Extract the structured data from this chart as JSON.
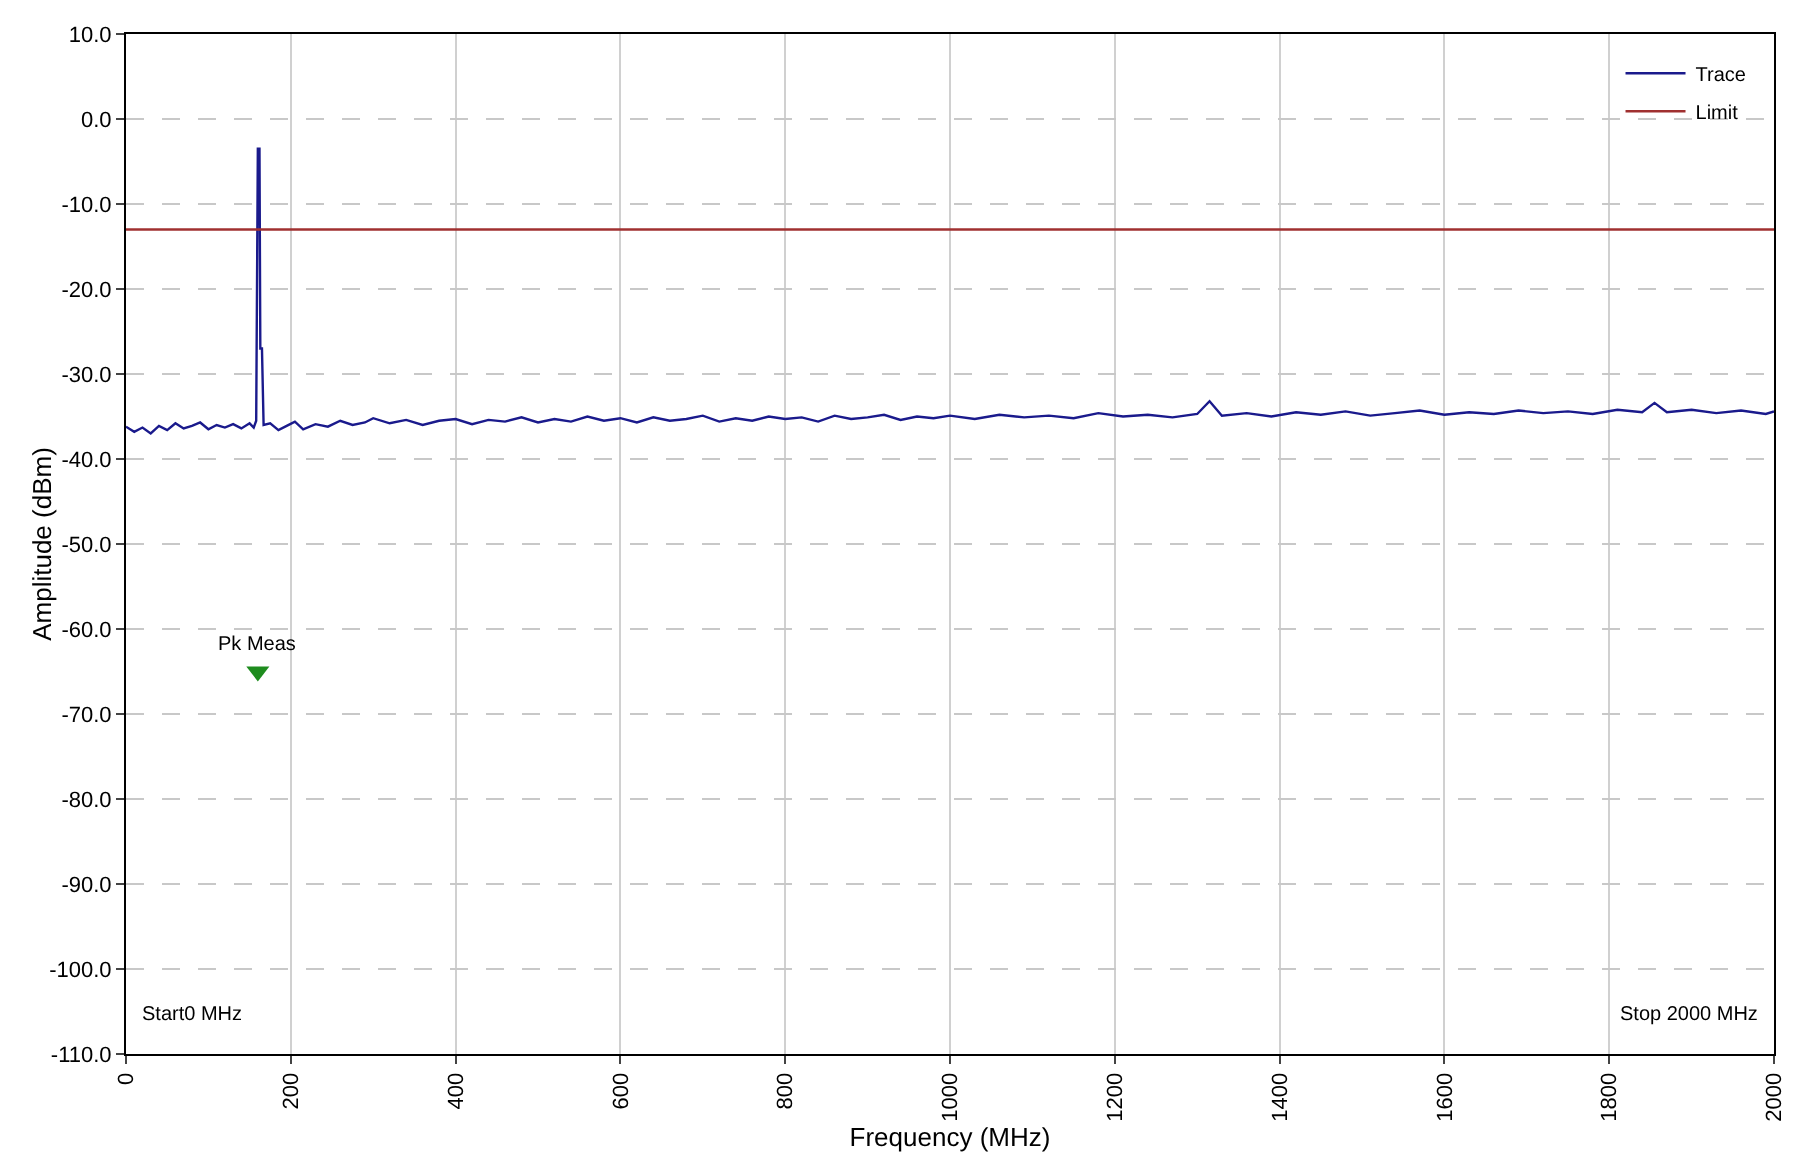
{
  "chart_data": {
    "type": "line",
    "xlabel": "Frequency (MHz)",
    "ylabel": "Amplitude (dBm)",
    "xlim": [
      0,
      2000
    ],
    "xticks": [
      0,
      200,
      400,
      600,
      800,
      1000,
      1200,
      1400,
      1600,
      1800,
      2000
    ],
    "ylim": [
      -110,
      10
    ],
    "yticks": [
      {
        "value": 10,
        "label": "10.0"
      },
      {
        "value": 0,
        "label": "0.0"
      },
      {
        "value": -10,
        "label": "-10.0"
      },
      {
        "value": -20,
        "label": "-20.0"
      },
      {
        "value": -30,
        "label": "-30.0"
      },
      {
        "value": -40,
        "label": "-40.0"
      },
      {
        "value": -50,
        "label": "-50.0"
      },
      {
        "value": -60,
        "label": "-60.0"
      },
      {
        "value": -70,
        "label": "-70.0"
      },
      {
        "value": -80,
        "label": "-80.0"
      },
      {
        "value": -90,
        "label": "-90.0"
      },
      {
        "value": -100,
        "label": "-100.0"
      },
      {
        "value": -110,
        "label": "-110.0"
      }
    ],
    "grid": true,
    "legend": "top right",
    "marker": "none",
    "line_style": "solid",
    "series": [
      {
        "name": "Trace",
        "color": "#1a1a8c",
        "x": [
          0,
          10,
          20,
          30,
          40,
          50,
          60,
          70,
          80,
          90,
          100,
          110,
          120,
          130,
          140,
          150,
          155,
          158,
          160,
          162,
          163,
          165,
          167,
          175,
          185,
          195,
          205,
          215,
          230,
          245,
          260,
          275,
          290,
          300,
          320,
          340,
          360,
          380,
          400,
          420,
          440,
          460,
          480,
          500,
          520,
          540,
          560,
          580,
          600,
          620,
          640,
          660,
          680,
          700,
          720,
          740,
          760,
          780,
          800,
          820,
          840,
          860,
          880,
          900,
          920,
          940,
          960,
          980,
          1000,
          1030,
          1060,
          1090,
          1120,
          1150,
          1180,
          1210,
          1240,
          1270,
          1300,
          1315,
          1330,
          1360,
          1390,
          1420,
          1450,
          1480,
          1510,
          1540,
          1570,
          1600,
          1630,
          1660,
          1690,
          1720,
          1750,
          1780,
          1810,
          1840,
          1855,
          1870,
          1900,
          1930,
          1960,
          1990,
          2000
        ],
        "values": [
          -36.2,
          -36.8,
          -36.3,
          -37,
          -36.1,
          -36.6,
          -35.8,
          -36.4,
          -36.1,
          -35.7,
          -36.5,
          -36,
          -36.3,
          -35.9,
          -36.4,
          -35.8,
          -36.3,
          -35.5,
          -3.5,
          -3.5,
          -27,
          -27,
          -36,
          -35.8,
          -36.6,
          -36.1,
          -35.6,
          -36.5,
          -35.9,
          -36.2,
          -35.5,
          -36,
          -35.7,
          -35.2,
          -35.8,
          -35.4,
          -36,
          -35.5,
          -35.3,
          -35.9,
          -35.4,
          -35.6,
          -35.1,
          -35.7,
          -35.3,
          -35.6,
          -35,
          -35.5,
          -35.2,
          -35.7,
          -35.1,
          -35.5,
          -35.3,
          -34.9,
          -35.6,
          -35.2,
          -35.5,
          -35,
          -35.3,
          -35.1,
          -35.6,
          -34.9,
          -35.3,
          -35.1,
          -34.8,
          -35.4,
          -35,
          -35.2,
          -34.9,
          -35.3,
          -34.8,
          -35.1,
          -34.9,
          -35.2,
          -34.6,
          -35,
          -34.8,
          -35.1,
          -34.7,
          -33.2,
          -34.9,
          -34.6,
          -35,
          -34.5,
          -34.8,
          -34.4,
          -34.9,
          -34.6,
          -34.3,
          -34.8,
          -34.5,
          -34.7,
          -34.3,
          -34.6,
          -34.4,
          -34.7,
          -34.2,
          -34.5,
          -33.4,
          -34.5,
          -34.2,
          -34.6,
          -34.3,
          -34.7,
          -34.4
        ]
      },
      {
        "name": "Limit",
        "color": "#a03030",
        "x": [
          0,
          2000
        ],
        "values": [
          -13,
          -13
        ]
      },
      {
        "type": "scatter",
        "color": "#1e8c1e",
        "marker": "triangle",
        "x": [
          160
        ],
        "values": [
          -65
        ]
      }
    ],
    "annotations": [
      "Pk Meas",
      "Start0 MHz",
      "Stop 2000 MHz"
    ]
  }
}
